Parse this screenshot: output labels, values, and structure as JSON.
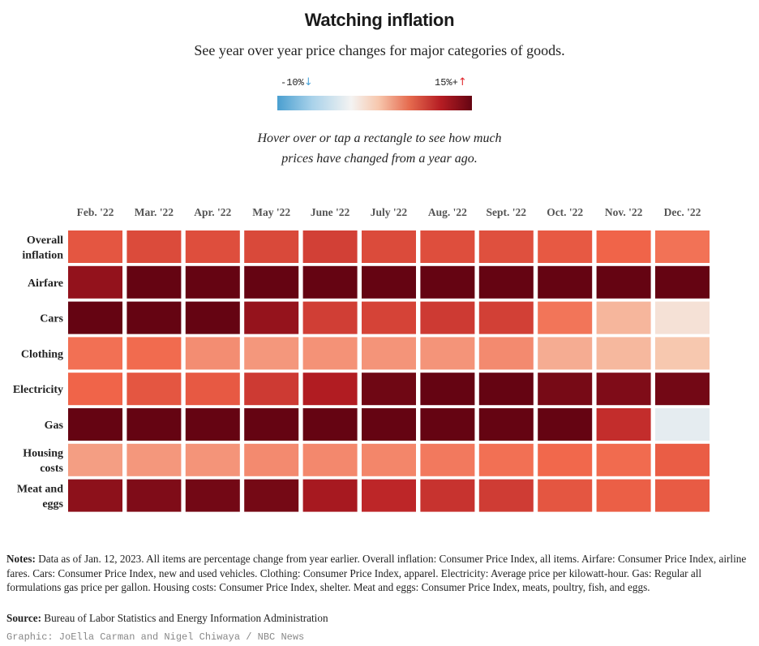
{
  "title": "Watching inflation",
  "subtitle": "See year over year price changes for major categories of goods.",
  "legend": {
    "min_label": "-10%",
    "min_arrow": "↓",
    "min_arrow_color": "#4aa3d8",
    "max_label": "15%+",
    "max_arrow": "↑",
    "max_arrow_color": "#e0242a"
  },
  "hint": {
    "line1": "Hover over or tap a rectangle to see how much",
    "line2": "prices have changed from a year ago."
  },
  "chart_data": {
    "type": "heatmap",
    "color_scale": {
      "min": -10,
      "max": 15,
      "stops": [
        {
          "v": -10,
          "c": "#4a9fd0"
        },
        {
          "v": -5.5,
          "c": "#a9d2ea"
        },
        {
          "v": -0.5,
          "c": "#f4f3f2"
        },
        {
          "v": 3,
          "c": "#f7c7ad"
        },
        {
          "v": 7,
          "c": "#f1664a"
        },
        {
          "v": 11,
          "c": "#b51d23"
        },
        {
          "v": 15,
          "c": "#650412"
        }
      ]
    },
    "columns": [
      "Feb. '22",
      "Mar. '22",
      "Apr. '22",
      "May '22",
      "June '22",
      "July '22",
      "Aug. '22",
      "Sept. '22",
      "Oct. '22",
      "Nov. '22",
      "Dec. '22"
    ],
    "rows": [
      {
        "label": [
          "Overall",
          "inflation"
        ],
        "values": [
          7.9,
          8.5,
          8.3,
          8.6,
          9.1,
          8.5,
          8.3,
          8.2,
          7.7,
          7.1,
          6.5
        ]
      },
      {
        "label": [
          "Airfare"
        ],
        "values": [
          12.7,
          23.6,
          33.3,
          37.8,
          34.1,
          27.7,
          33.2,
          42.9,
          42.9,
          36.0,
          28.5
        ]
      },
      {
        "label": [
          "Cars"
        ],
        "values": [
          20.9,
          18.7,
          17.3,
          12.6,
          9.2,
          8.9,
          9.4,
          9.1,
          6.4,
          3.7,
          0.9
        ]
      },
      {
        "label": [
          "Clothing"
        ],
        "values": [
          6.6,
          6.8,
          5.4,
          5.0,
          5.2,
          5.1,
          5.1,
          5.5,
          4.1,
          3.6,
          2.9
        ]
      },
      {
        "label": [
          "Electricity"
        ],
        "values": [
          7.1,
          7.9,
          7.7,
          9.4,
          11.2,
          14.5,
          15.8,
          15.5,
          14.1,
          13.7,
          14.3
        ]
      },
      {
        "label": [
          "Gas"
        ],
        "values": [
          38.4,
          47.3,
          43.8,
          48.1,
          59.1,
          44.0,
          25.6,
          18.2,
          17.5,
          10.1,
          -1.5
        ]
      },
      {
        "label": [
          "Housing",
          "costs"
        ],
        "values": [
          4.7,
          5.0,
          5.1,
          5.5,
          5.6,
          5.7,
          6.2,
          6.6,
          6.9,
          6.8,
          7.5
        ]
      },
      {
        "label": [
          "Meat and",
          "eggs"
        ],
        "values": [
          13.0,
          13.7,
          14.3,
          14.2,
          11.7,
          10.5,
          9.8,
          9.3,
          7.9,
          7.4,
          7.6
        ]
      }
    ]
  },
  "notes": {
    "label": "Notes:",
    "text": "Data as of Jan. 12, 2023. All items are percentage change from year earlier. Overall inflation: Consumer Price Index, all items. Airfare: Consumer Price Index, airline fares. Cars: Consumer Price Index, new and used vehicles. Clothing: Consumer Price Index, apparel. Electricity: Average price per kilowatt-hour. Gas: Regular all formulations gas price per gallon. Housing costs: Consumer Price Index, shelter. Meat and eggs: Consumer Price Index, meats, poultry, fish, and eggs."
  },
  "source": {
    "label": "Source:",
    "text": "Bureau of Labor Statistics and Energy Information Administration"
  },
  "credit": "Graphic: JoElla Carman and Nigel Chiwaya / NBC News"
}
